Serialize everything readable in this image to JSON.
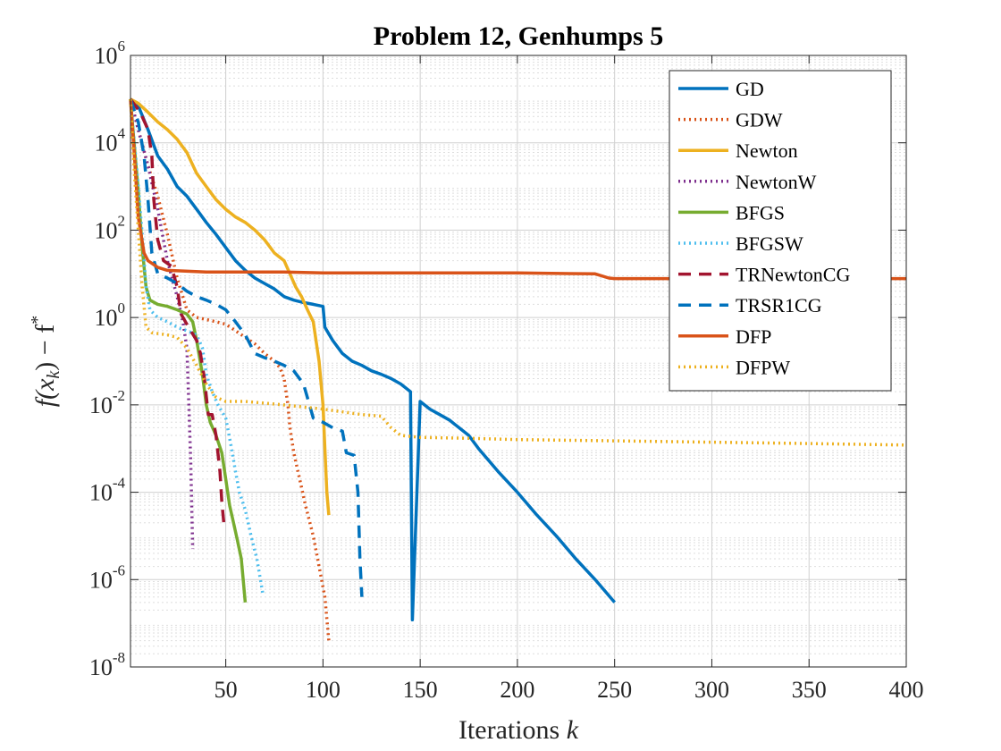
{
  "chart_data": {
    "type": "line",
    "title": "Problem 12, Genhumps 5",
    "xlabel": {
      "text": "Iterations ",
      "var": "k"
    },
    "ylabel": {
      "text": "f(x",
      "sub": "k",
      "mid": ") − f",
      "sup": "*"
    },
    "x_scale": "linear",
    "y_scale": "log",
    "xlim": [
      1,
      400
    ],
    "ylim_exponent": [
      -8,
      6
    ],
    "x_ticks": [
      "50",
      "100",
      "150",
      "200",
      "250",
      "300",
      "350",
      "400"
    ],
    "y_ticks": [
      {
        "base": "10",
        "exp": "-8"
      },
      {
        "base": "10",
        "exp": "-6"
      },
      {
        "base": "10",
        "exp": "-4"
      },
      {
        "base": "10",
        "exp": "-2"
      },
      {
        "base": "10",
        "exp": "0"
      },
      {
        "base": "10",
        "exp": "2"
      },
      {
        "base": "10",
        "exp": "4"
      },
      {
        "base": "10",
        "exp": "6"
      }
    ],
    "grid": true,
    "minor_grid": true,
    "legend_position": "top-right",
    "series": [
      {
        "name": "GD",
        "color": "#0072BD",
        "style": "solid",
        "points": [
          [
            1,
            100000
          ],
          [
            5,
            70000
          ],
          [
            10,
            20000
          ],
          [
            15,
            5000
          ],
          [
            20,
            2500
          ],
          [
            25,
            1000
          ],
          [
            30,
            600
          ],
          [
            35,
            300
          ],
          [
            40,
            150
          ],
          [
            45,
            80
          ],
          [
            50,
            40
          ],
          [
            55,
            20
          ],
          [
            60,
            12
          ],
          [
            65,
            8
          ],
          [
            70,
            6
          ],
          [
            75,
            4.5
          ],
          [
            80,
            3
          ],
          [
            85,
            2.5
          ],
          [
            90,
            2.2
          ],
          [
            95,
            2
          ],
          [
            100,
            1.8
          ],
          [
            101,
            0.6
          ],
          [
            105,
            0.3
          ],
          [
            110,
            0.15
          ],
          [
            115,
            0.1
          ],
          [
            120,
            0.08
          ],
          [
            125,
            0.06
          ],
          [
            130,
            0.05
          ],
          [
            135,
            0.04
          ],
          [
            140,
            0.03
          ],
          [
            145,
            0.02
          ],
          [
            150,
            0.012
          ],
          [
            155,
            0.008
          ],
          [
            160,
            0.006
          ],
          [
            165,
            0.0045
          ],
          [
            170,
            0.003
          ],
          [
            175,
            0.002
          ],
          [
            180,
            0.001
          ],
          [
            190,
            0.0003
          ],
          [
            200,
            0.0001
          ],
          [
            210,
            3e-05
          ],
          [
            220,
            1e-05
          ],
          [
            230,
            3e-06
          ],
          [
            240,
            1e-06
          ],
          [
            250,
            3e-07
          ],
          [
            146,
            1.2e-07
          ]
        ]
      },
      {
        "name": "GDW",
        "color": "#D95319",
        "style": "dotted",
        "points": [
          [
            1,
            100000
          ],
          [
            5,
            20000
          ],
          [
            10,
            3000
          ],
          [
            15,
            600
          ],
          [
            20,
            80
          ],
          [
            25,
            8
          ],
          [
            30,
            1.5
          ],
          [
            35,
            1
          ],
          [
            40,
            0.9
          ],
          [
            45,
            0.8
          ],
          [
            50,
            0.7
          ],
          [
            55,
            0.5
          ],
          [
            60,
            0.35
          ],
          [
            65,
            0.25
          ],
          [
            70,
            0.15
          ],
          [
            75,
            0.1
          ],
          [
            78,
            0.07
          ],
          [
            80,
            0.04
          ],
          [
            82,
            0.01
          ],
          [
            83,
            0.003
          ],
          [
            85,
            0.0008
          ],
          [
            88,
            0.0002
          ],
          [
            91,
            5e-05
          ],
          [
            95,
            1e-05
          ],
          [
            98,
            2e-06
          ],
          [
            101,
            4e-07
          ],
          [
            103,
            4e-08
          ]
        ]
      },
      {
        "name": "Newton",
        "color": "#EDB120",
        "style": "solid",
        "points": [
          [
            1,
            100000
          ],
          [
            5,
            80000
          ],
          [
            10,
            50000
          ],
          [
            15,
            30000
          ],
          [
            20,
            20000
          ],
          [
            25,
            12000
          ],
          [
            30,
            6000
          ],
          [
            35,
            2000
          ],
          [
            40,
            1000
          ],
          [
            45,
            500
          ],
          [
            50,
            300
          ],
          [
            55,
            200
          ],
          [
            60,
            150
          ],
          [
            65,
            100
          ],
          [
            70,
            60
          ],
          [
            75,
            30
          ],
          [
            80,
            20
          ],
          [
            83,
            10
          ],
          [
            86,
            5
          ],
          [
            89,
            3
          ],
          [
            92,
            1.5
          ],
          [
            95,
            0.8
          ],
          [
            98,
            0.1
          ],
          [
            100,
            0.01
          ],
          [
            101,
            0.001
          ],
          [
            102,
            0.0001
          ],
          [
            103,
            3e-05
          ]
        ]
      },
      {
        "name": "NewtonW",
        "color": "#7E2F8E",
        "style": "dotted",
        "points": [
          [
            1,
            100000
          ],
          [
            5,
            20000
          ],
          [
            10,
            3000
          ],
          [
            15,
            300
          ],
          [
            20,
            20
          ],
          [
            25,
            3
          ],
          [
            28,
            0.8
          ],
          [
            30,
            0.2
          ],
          [
            31,
            0.01
          ],
          [
            32,
            0.0005
          ],
          [
            33,
            5e-06
          ]
        ]
      },
      {
        "name": "BFGS",
        "color": "#77AC30",
        "style": "solid",
        "points": [
          [
            1,
            100000
          ],
          [
            3,
            8000
          ],
          [
            5,
            800
          ],
          [
            7,
            40
          ],
          [
            9,
            5
          ],
          [
            11,
            2.5
          ],
          [
            15,
            2
          ],
          [
            20,
            1.8
          ],
          [
            25,
            1.5
          ],
          [
            30,
            1.2
          ],
          [
            33,
            0.8
          ],
          [
            35,
            0.3
          ],
          [
            38,
            0.05
          ],
          [
            40,
            0.01
          ],
          [
            42,
            0.004
          ],
          [
            45,
            0.002
          ],
          [
            48,
            0.0008
          ],
          [
            50,
            0.0002
          ],
          [
            52,
            5e-05
          ],
          [
            54,
            2e-05
          ],
          [
            56,
            8e-06
          ],
          [
            58,
            3e-06
          ],
          [
            60,
            3e-07
          ]
        ]
      },
      {
        "name": "BFGSW",
        "color": "#4DBEEE",
        "style": "dotted",
        "points": [
          [
            1,
            100000
          ],
          [
            3,
            10000
          ],
          [
            5,
            1000
          ],
          [
            7,
            80
          ],
          [
            9,
            5
          ],
          [
            11,
            1.5
          ],
          [
            15,
            1
          ],
          [
            20,
            0.8
          ],
          [
            25,
            0.6
          ],
          [
            30,
            0.5
          ],
          [
            35,
            0.4
          ],
          [
            38,
            0.2
          ],
          [
            40,
            0.05
          ],
          [
            43,
            0.02
          ],
          [
            46,
            0.01
          ],
          [
            50,
            0.005
          ],
          [
            53,
            0.001
          ],
          [
            55,
            0.0003
          ],
          [
            57,
            0.0001
          ],
          [
            60,
            4e-05
          ],
          [
            63,
            1e-05
          ],
          [
            66,
            3e-06
          ],
          [
            69,
            5e-07
          ]
        ]
      },
      {
        "name": "TRNewtonCG",
        "color": "#A2142F",
        "style": "dashed",
        "points": [
          [
            1,
            100000
          ],
          [
            6,
            50000
          ],
          [
            10,
            20000
          ],
          [
            12,
            5000
          ],
          [
            13,
            500
          ],
          [
            15,
            60
          ],
          [
            18,
            20
          ],
          [
            22,
            15
          ],
          [
            25,
            5
          ],
          [
            27,
            1.2
          ],
          [
            30,
            0.7
          ],
          [
            32,
            0.5
          ],
          [
            35,
            0.3
          ],
          [
            37,
            0.15
          ],
          [
            39,
            0.04
          ],
          [
            41,
            0.006
          ],
          [
            43,
            0.006
          ],
          [
            45,
            0.002
          ],
          [
            47,
            0.0003
          ],
          [
            48,
            6e-05
          ],
          [
            49,
            2e-05
          ]
        ]
      },
      {
        "name": "TRSR1CG",
        "color": "#0072BD",
        "style": "dashed",
        "points": [
          [
            1,
            100000
          ],
          [
            5,
            30000
          ],
          [
            8,
            5000
          ],
          [
            10,
            500
          ],
          [
            12,
            30
          ],
          [
            15,
            10
          ],
          [
            20,
            8
          ],
          [
            25,
            6
          ],
          [
            30,
            4
          ],
          [
            35,
            3
          ],
          [
            40,
            2.5
          ],
          [
            45,
            2
          ],
          [
            50,
            1.5
          ],
          [
            55,
            0.8
          ],
          [
            60,
            0.4
          ],
          [
            65,
            0.15
          ],
          [
            70,
            0.12
          ],
          [
            75,
            0.1
          ],
          [
            80,
            0.08
          ],
          [
            85,
            0.06
          ],
          [
            90,
            0.03
          ],
          [
            95,
            0.005
          ],
          [
            100,
            0.004
          ],
          [
            105,
            0.003
          ],
          [
            110,
            0.0025
          ],
          [
            112,
            0.0008
          ],
          [
            116,
            0.0007
          ],
          [
            118,
            0.0001
          ],
          [
            119,
            3e-06
          ],
          [
            120,
            4e-07
          ]
        ]
      },
      {
        "name": "DFP",
        "color": "#D95319",
        "style": "solid",
        "points": [
          [
            1,
            100000
          ],
          [
            3,
            5000
          ],
          [
            5,
            200
          ],
          [
            8,
            30
          ],
          [
            10,
            20
          ],
          [
            15,
            14
          ],
          [
            20,
            12
          ],
          [
            40,
            11
          ],
          [
            60,
            11
          ],
          [
            80,
            11
          ],
          [
            100,
            10.5
          ],
          [
            150,
            10.5
          ],
          [
            200,
            10.5
          ],
          [
            240,
            10
          ],
          [
            247,
            8
          ],
          [
            250,
            7.8
          ],
          [
            300,
            7.8
          ],
          [
            350,
            7.8
          ],
          [
            400,
            7.8
          ]
        ]
      },
      {
        "name": "DFPW",
        "color": "#EDB120",
        "style": "dotted",
        "points": [
          [
            1,
            100000
          ],
          [
            3,
            2000
          ],
          [
            5,
            100
          ],
          [
            7,
            5
          ],
          [
            9,
            0.6
          ],
          [
            12,
            0.45
          ],
          [
            20,
            0.4
          ],
          [
            25,
            0.35
          ],
          [
            30,
            0.2
          ],
          [
            35,
            0.08
          ],
          [
            40,
            0.03
          ],
          [
            45,
            0.015
          ],
          [
            50,
            0.012
          ],
          [
            60,
            0.012
          ],
          [
            80,
            0.01
          ],
          [
            100,
            0.008
          ],
          [
            120,
            0.006
          ],
          [
            130,
            0.0055
          ],
          [
            135,
            0.003
          ],
          [
            140,
            0.002
          ],
          [
            150,
            0.0018
          ],
          [
            180,
            0.0017
          ],
          [
            200,
            0.0016
          ],
          [
            250,
            0.0015
          ],
          [
            300,
            0.0014
          ],
          [
            350,
            0.0013
          ],
          [
            400,
            0.0012
          ]
        ]
      }
    ]
  }
}
